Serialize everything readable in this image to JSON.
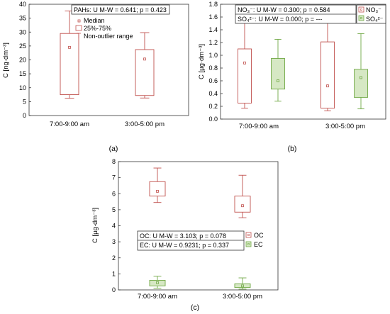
{
  "chart_data": [
    {
      "panel_label": "(a)",
      "type": "box",
      "ylabel": "C [ng·dm⁻³]",
      "ylim": [
        0,
        40
      ],
      "yticks": [
        0,
        5,
        10,
        15,
        20,
        25,
        30,
        35,
        40
      ],
      "categories": [
        "7:00-9:00 am",
        "3:00-5:00 pm"
      ],
      "stats_text": "PAHs: U M-W = 0.641; p = 0.423",
      "legend": [
        "Median",
        "25%-75%",
        "Non-outlier range"
      ],
      "series": [
        {
          "name": "PAHs",
          "color": "#c0504d",
          "fill": "none",
          "boxes": [
            {
              "min": 6.2,
              "q1": 7.5,
              "median": 24.5,
              "q3": 29.5,
              "max": 37.6
            },
            {
              "min": 6.3,
              "q1": 7.2,
              "median": 20.3,
              "q3": 23.7,
              "max": 29.8
            }
          ]
        }
      ]
    },
    {
      "panel_label": "(b)",
      "type": "box",
      "ylabel": "C [µg·dm⁻³]",
      "ylim": [
        0,
        1.8
      ],
      "yticks": [
        0,
        0.2,
        0.4,
        0.6,
        0.8,
        1.0,
        1.2,
        1.4,
        1.6,
        1.8
      ],
      "categories": [
        "7:00-9:00 am",
        "3:00-5:00 pm"
      ],
      "stats_text": [
        "NO₃⁻: U M-W = 0.300; p = 0.584",
        "SO₄²⁻: U M-W = 0.000; p = ---"
      ],
      "series": [
        {
          "name": "NO₃⁻",
          "color": "#c0504d",
          "fill": "none",
          "boxes": [
            {
              "min": 0.17,
              "q1": 0.25,
              "median": 0.88,
              "q3": 1.1,
              "max": 1.69
            },
            {
              "min": 0.13,
              "q1": 0.17,
              "median": 0.52,
              "q3": 1.21,
              "max": 1.55
            }
          ]
        },
        {
          "name": "SO₄²⁻",
          "color": "#70a845",
          "fill": "#d6e8c4",
          "boxes": [
            {
              "min": 0.28,
              "q1": 0.47,
              "median": 0.6,
              "q3": 0.95,
              "max": 1.25
            },
            {
              "min": 0.16,
              "q1": 0.34,
              "median": 0.65,
              "q3": 0.78,
              "max": 1.34
            }
          ]
        }
      ]
    },
    {
      "panel_label": "(c)",
      "type": "box",
      "ylabel": "C [µg·dm⁻³]",
      "ylim": [
        0,
        8
      ],
      "yticks": [
        0,
        1,
        2,
        3,
        4,
        5,
        6,
        7,
        8
      ],
      "categories": [
        "7:00-9:00 am",
        "3:00-5:00 pm"
      ],
      "stats_text": [
        "OC: U M-W = 3.103; p = 0.078",
        "EC: U M-W = 0.9231; p = 0.337"
      ],
      "series": [
        {
          "name": "OC",
          "color": "#c0504d",
          "fill": "none",
          "boxes": [
            {
              "min": 5.45,
              "q1": 5.85,
              "median": 6.15,
              "q3": 6.75,
              "max": 7.6
            },
            {
              "min": 4.5,
              "q1": 4.85,
              "median": 5.25,
              "q3": 5.85,
              "max": 7.15
            }
          ]
        },
        {
          "name": "EC",
          "color": "#70a845",
          "fill": "#d6e8c4",
          "boxes": [
            {
              "min": 0.1,
              "q1": 0.25,
              "median": 0.45,
              "q3": 0.6,
              "max": 0.85
            },
            {
              "min": 0.05,
              "q1": 0.15,
              "median": 0.25,
              "q3": 0.38,
              "max": 0.75
            }
          ]
        }
      ]
    }
  ]
}
